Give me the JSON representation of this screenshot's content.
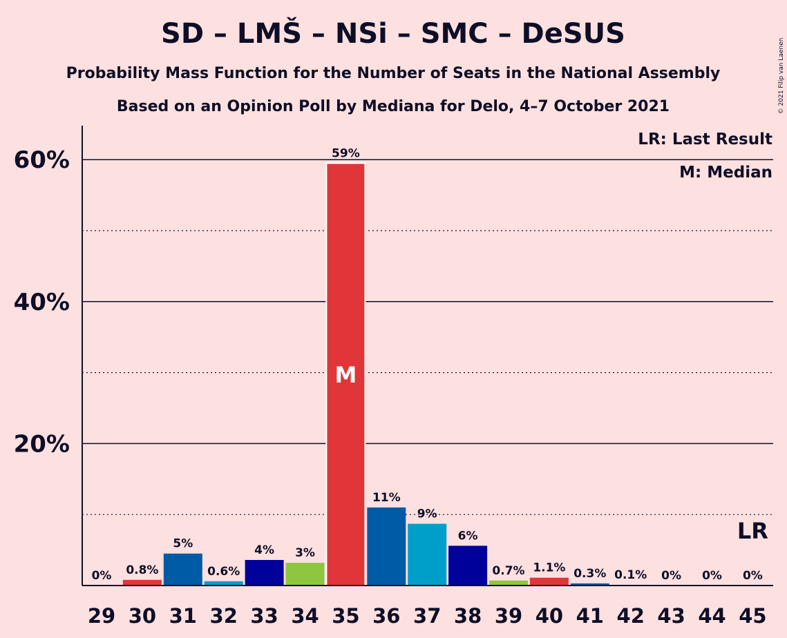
{
  "title": "SD – LMŠ – NSi – SMC – DeSUS",
  "subtitle1": "Probability Mass Function for the Number of Seats in the National Assembly",
  "subtitle2": "Based on an Opinion Poll by Mediana for Delo, 4–7 October 2021",
  "copyright": "© 2021 Filip van Laenen",
  "legend": {
    "last_result": "LR: Last Result",
    "median": "M: Median"
  },
  "chart_data": {
    "type": "bar",
    "categories": [
      "29",
      "30",
      "31",
      "32",
      "33",
      "34",
      "35",
      "36",
      "37",
      "38",
      "39",
      "40",
      "41",
      "42",
      "43",
      "44",
      "45"
    ],
    "values": [
      0,
      0.8,
      4.5,
      0.6,
      3.6,
      3.2,
      59.5,
      11,
      8.7,
      5.6,
      0.7,
      1.1,
      0.3,
      0.1,
      0,
      0,
      0
    ],
    "labels": [
      "0%",
      "0.8%",
      "5%",
      "0.6%",
      "4%",
      "3%",
      "59%",
      "11%",
      "9%",
      "6%",
      "0.7%",
      "1.1%",
      "0.3%",
      "0.1%",
      "0%",
      "0%",
      "0%"
    ],
    "colors": [
      "#e0363a",
      "#e0363a",
      "#005ba6",
      "#009fca",
      "#00009b",
      "#8dc63f",
      "#e0363a",
      "#005ba6",
      "#009fca",
      "#00009b",
      "#8dc63f",
      "#e0363a",
      "#005ba6",
      "#009fca",
      "#00009b",
      "#8dc63f",
      "#e0363a"
    ],
    "ylim": [
      0,
      65
    ],
    "yticks": [
      20,
      40,
      60
    ],
    "ytick_labels": [
      "20%",
      "40%",
      "60%"
    ],
    "minor_gridlines": [
      10,
      30,
      50
    ],
    "median_category": "35",
    "median_marker": "M",
    "last_result_category": "45",
    "last_result_marker": "LR"
  }
}
